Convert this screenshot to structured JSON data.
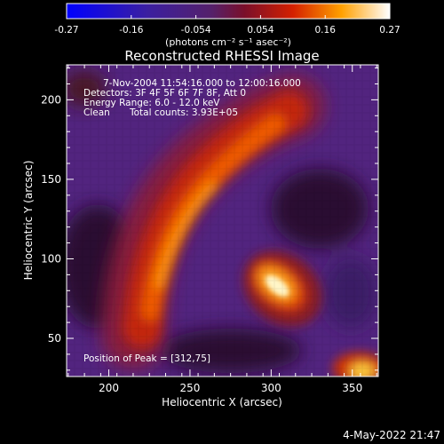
{
  "chart_data": {
    "type": "heatmap",
    "title": "Reconstructed RHESSI Image",
    "xlabel": "Heliocentric X (arcsec)",
    "ylabel": "Heliocentric Y (arcsec)",
    "xlim": [
      174,
      366
    ],
    "ylim": [
      26,
      222
    ],
    "x_ticks": [
      200,
      250,
      300,
      350
    ],
    "y_ticks": [
      50,
      100,
      150,
      200
    ],
    "colorbar": {
      "range": [
        -0.27,
        0.27
      ],
      "ticks": [
        "-0.27",
        "-0.16",
        "-0.054",
        "0.054",
        "0.16",
        "0.27"
      ],
      "unit_label": "(photons cm⁻² s⁻¹ asec⁻²)",
      "colormap": "RHESSI blue-purple-red-yellow-white"
    },
    "annotations": [
      "7-Nov-2004 11:54:16.000 to 12:00:16.000",
      "Detectors: 3F 4F 5F 6F 7F 8F, Att 0",
      "Energy Range: 6.0 - 12.0 keV",
      "Clean",
      "Total counts: 3.93E+05",
      "Position of Peak = [312,75]"
    ],
    "peak": {
      "x": 312,
      "y": 75
    },
    "timestamp": "4-May-2022 21:47"
  }
}
